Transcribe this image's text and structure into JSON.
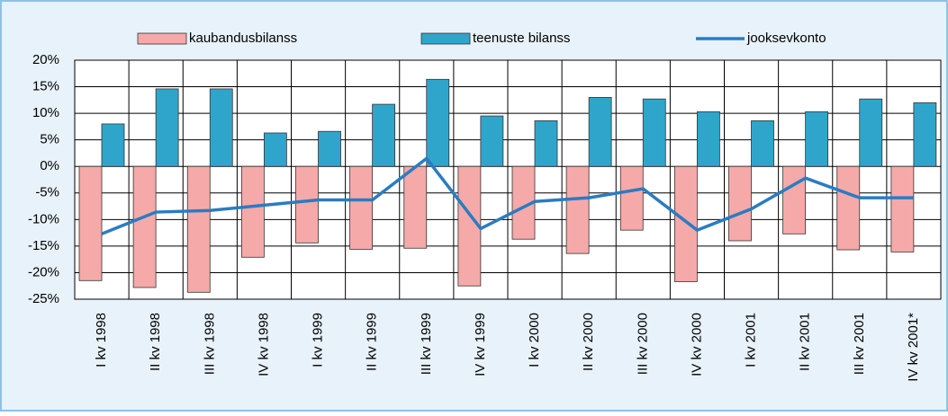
{
  "chart_data": {
    "type": "bar-line",
    "categories": [
      "I kv 1998",
      "II kv 1998",
      "III kv 1998",
      "IV kv 1998",
      "I kv 1999",
      "II kv 1999",
      "III kv 1999",
      "IV kv 1999",
      "I kv 2000",
      "II kv 2000",
      "III kv 2000",
      "IV kv 2000",
      "I kv 2001",
      "II kv 2001",
      "III kv 2001",
      "IV kv 2001*"
    ],
    "series": [
      {
        "name": "kaubandusbilanss",
        "type": "bar",
        "color": "#f6a9a9",
        "values": [
          -21.5,
          -22.8,
          -23.7,
          -17.1,
          -14.4,
          -15.6,
          -15.4,
          -22.5,
          -13.7,
          -16.4,
          -12.0,
          -21.7,
          -14.0,
          -12.7,
          -15.7,
          -16.1
        ]
      },
      {
        "name": "teenuste bilanss",
        "type": "bar",
        "color": "#2fa5cc",
        "values": [
          8.0,
          14.6,
          14.6,
          6.3,
          6.6,
          11.7,
          16.4,
          9.5,
          8.6,
          13.0,
          12.7,
          10.3,
          8.6,
          10.3,
          12.7,
          12.0
        ]
      },
      {
        "name": "jooksevkonto",
        "type": "line",
        "color": "#2a7cc1",
        "values": [
          -12.7,
          -8.6,
          -8.3,
          -7.3,
          -6.3,
          -6.3,
          1.5,
          -11.7,
          -6.6,
          -5.9,
          -4.2,
          -12.0,
          -8.0,
          -2.2,
          -5.9,
          -5.9
        ]
      }
    ],
    "ylim": [
      -25,
      20
    ],
    "yticks": [
      {
        "value": -25,
        "label": "-25%"
      },
      {
        "value": -20,
        "label": "-20%"
      },
      {
        "value": -15,
        "label": "-15%"
      },
      {
        "value": -10,
        "label": "-10%"
      },
      {
        "value": -5,
        "label": "-5%"
      },
      {
        "value": 0,
        "label": "0%"
      },
      {
        "value": 5,
        "label": "5%"
      },
      {
        "value": 10,
        "label": "10%"
      },
      {
        "value": 15,
        "label": "15%"
      },
      {
        "value": 20,
        "label": "20%"
      }
    ],
    "grid": true
  }
}
